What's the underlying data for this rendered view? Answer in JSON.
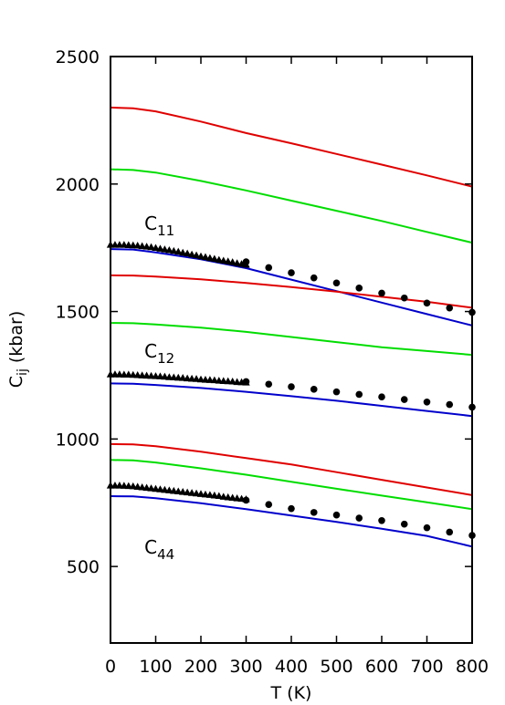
{
  "chart_data": {
    "type": "line",
    "xlabel": "T (K)",
    "ylabel": {
      "main": "C",
      "sub": "ij",
      "rest": " (kbar)"
    },
    "xlim": [
      0,
      800
    ],
    "ylim": [
      200,
      2500
    ],
    "xticks": [
      0,
      100,
      200,
      300,
      400,
      500,
      600,
      700,
      800
    ],
    "yticks": [
      500,
      1000,
      1500,
      2000,
      2500
    ],
    "grid": false,
    "legend": "none",
    "colors": {
      "red": "#e00000",
      "green": "#00dd00",
      "blue": "#0000cc",
      "markers": "#000000"
    },
    "annotations": [
      {
        "main": "C",
        "sub": "11",
        "x": 75,
        "y": 1820
      },
      {
        "main": "C",
        "sub": "12",
        "x": 75,
        "y": 1320
      },
      {
        "main": "C",
        "sub": "44",
        "x": 75,
        "y": 550
      }
    ],
    "series": [
      {
        "group": "C11",
        "color": "red",
        "x": [
          0,
          50,
          100,
          200,
          300,
          400,
          500,
          600,
          700,
          800
        ],
        "y": [
          2300,
          2297,
          2285,
          2245,
          2200,
          2160,
          2118,
          2076,
          2034,
          1990
        ]
      },
      {
        "group": "C11",
        "color": "green",
        "x": [
          0,
          50,
          100,
          200,
          300,
          400,
          500,
          600,
          700,
          800
        ],
        "y": [
          2058,
          2055,
          2045,
          2012,
          1975,
          1935,
          1895,
          1855,
          1812,
          1770
        ]
      },
      {
        "group": "C11",
        "color": "blue",
        "x": [
          0,
          50,
          100,
          200,
          300,
          400,
          500,
          600,
          700,
          800
        ],
        "y": [
          1745,
          1743,
          1732,
          1705,
          1670,
          1625,
          1580,
          1535,
          1490,
          1445
        ]
      },
      {
        "group": "C12",
        "color": "red",
        "x": [
          0,
          50,
          100,
          200,
          300,
          400,
          500,
          600,
          700,
          800
        ],
        "y": [
          1642,
          1641,
          1637,
          1626,
          1612,
          1596,
          1578,
          1558,
          1538,
          1515
        ]
      },
      {
        "group": "C12",
        "color": "green",
        "x": [
          0,
          50,
          100,
          200,
          300,
          400,
          500,
          600,
          700,
          800
        ],
        "y": [
          1455,
          1454,
          1449,
          1437,
          1420,
          1400,
          1380,
          1360,
          1345,
          1330
        ]
      },
      {
        "group": "C12",
        "color": "blue",
        "x": [
          0,
          50,
          100,
          200,
          300,
          400,
          500,
          600,
          700,
          800
        ],
        "y": [
          1218,
          1217,
          1212,
          1200,
          1185,
          1168,
          1150,
          1130,
          1110,
          1090
        ]
      },
      {
        "group": "C44",
        "color": "red",
        "x": [
          0,
          50,
          100,
          200,
          300,
          400,
          500,
          600,
          700,
          800
        ],
        "y": [
          980,
          979,
          972,
          950,
          925,
          900,
          870,
          840,
          810,
          780
        ]
      },
      {
        "group": "C44",
        "color": "green",
        "x": [
          0,
          50,
          100,
          200,
          300,
          400,
          500,
          600,
          700,
          800
        ],
        "y": [
          918,
          916,
          908,
          885,
          860,
          832,
          805,
          778,
          752,
          725
        ]
      },
      {
        "group": "C44",
        "color": "blue",
        "x": [
          0,
          50,
          100,
          200,
          300,
          400,
          500,
          600,
          700,
          800
        ],
        "y": [
          776,
          775,
          768,
          748,
          725,
          700,
          675,
          648,
          620,
          578
        ]
      }
    ],
    "triangles": [
      {
        "group": "C11",
        "x": [
          0,
          10,
          20,
          30,
          40,
          50,
          60,
          70,
          80,
          90,
          100,
          110,
          120,
          130,
          140,
          150,
          160,
          170,
          180,
          190,
          200,
          210,
          220,
          230,
          240,
          250,
          260,
          270,
          280,
          290,
          300
        ],
        "y": [
          1762,
          1762,
          1762,
          1762,
          1761,
          1760,
          1759,
          1757,
          1755,
          1753,
          1750,
          1747,
          1744,
          1741,
          1738,
          1735,
          1731,
          1728,
          1724,
          1721,
          1717,
          1714,
          1710,
          1707,
          1703,
          1700,
          1697,
          1694,
          1690,
          1687,
          1684
        ]
      },
      {
        "group": "C12",
        "x": [
          0,
          10,
          20,
          30,
          40,
          50,
          60,
          70,
          80,
          90,
          100,
          110,
          120,
          130,
          140,
          150,
          160,
          170,
          180,
          190,
          200,
          210,
          220,
          230,
          240,
          250,
          260,
          270,
          280,
          290,
          300
        ],
        "y": [
          1254,
          1254,
          1254,
          1253,
          1253,
          1252,
          1251,
          1250,
          1249,
          1248,
          1247,
          1246,
          1245,
          1243,
          1242,
          1241,
          1240,
          1238,
          1237,
          1236,
          1234,
          1233,
          1232,
          1231,
          1229,
          1228,
          1227,
          1226,
          1224,
          1223,
          1222
        ]
      },
      {
        "group": "C44",
        "x": [
          0,
          10,
          20,
          30,
          40,
          50,
          60,
          70,
          80,
          90,
          100,
          110,
          120,
          130,
          140,
          150,
          160,
          170,
          180,
          190,
          200,
          210,
          220,
          230,
          240,
          250,
          260,
          270,
          280,
          290,
          300
        ],
        "y": [
          818,
          818,
          818,
          817,
          816,
          815,
          813,
          811,
          809,
          807,
          805,
          803,
          801,
          799,
          797,
          795,
          793,
          791,
          789,
          787,
          785,
          783,
          781,
          779,
          777,
          774,
          772,
          770,
          768,
          766,
          764
        ]
      }
    ],
    "dots": [
      {
        "group": "C11",
        "x": [
          300,
          350,
          400,
          450,
          500,
          550,
          600,
          650,
          700,
          750,
          800
        ],
        "y": [
          1695,
          1672,
          1652,
          1632,
          1612,
          1592,
          1572,
          1553,
          1533,
          1514,
          1497
        ]
      },
      {
        "group": "C12",
        "x": [
          300,
          350,
          400,
          450,
          500,
          550,
          600,
          650,
          700,
          750,
          800
        ],
        "y": [
          1225,
          1215,
          1205,
          1195,
          1185,
          1175,
          1165,
          1155,
          1145,
          1135,
          1125
        ]
      },
      {
        "group": "C44",
        "x": [
          300,
          350,
          400,
          450,
          500,
          550,
          600,
          650,
          700,
          750,
          800
        ],
        "y": [
          760,
          743,
          727,
          712,
          702,
          690,
          680,
          666,
          652,
          635,
          622
        ]
      }
    ]
  }
}
